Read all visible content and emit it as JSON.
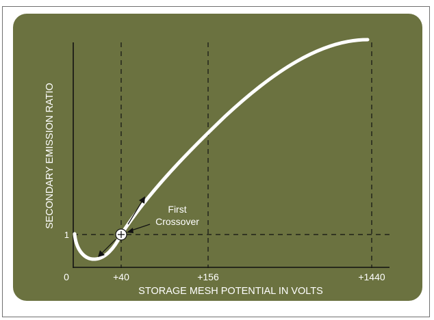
{
  "chart_data": {
    "type": "line",
    "title": "",
    "xlabel": "STORAGE MESH POTENTIAL IN VOLTS",
    "ylabel": "SECONDARY EMISSION RATIO",
    "x_ticks": [
      {
        "value": 0,
        "label": "0"
      },
      {
        "value": 40,
        "label": "+40"
      },
      {
        "value": 156,
        "label": "+156"
      },
      {
        "value": 1440,
        "label": "+1440"
      }
    ],
    "y_ticks": [
      {
        "value": 1,
        "label": "1"
      }
    ],
    "axis_scale": "nonlinear (tick positions not to scale)",
    "series": [
      {
        "values_note": "qualitative curve; y in secondary emission ratio",
        "x": [
          4,
          12,
          20,
          30,
          40,
          70,
          100,
          156,
          300,
          600,
          1000,
          1300,
          1440
        ],
        "y": [
          1.0,
          0.82,
          0.78,
          0.85,
          1.0,
          1.5,
          2.0,
          2.7,
          3.3,
          3.9,
          4.4,
          4.6,
          4.6
        ]
      }
    ],
    "reference_lines": [
      {
        "axis": "x",
        "value": 40
      },
      {
        "axis": "x",
        "value": 156
      },
      {
        "axis": "x",
        "value": 1440
      },
      {
        "axis": "y",
        "value": 1
      }
    ],
    "annotations": [
      {
        "text": "First\nCrossover",
        "line1": "First",
        "line2": "Crossover",
        "x": 40,
        "y": 1
      }
    ],
    "colors": {
      "background": "#6b7240",
      "curve": "#ffffff",
      "axes": "#111111",
      "text": "#ffffff"
    },
    "grid": false,
    "legend": "none"
  }
}
